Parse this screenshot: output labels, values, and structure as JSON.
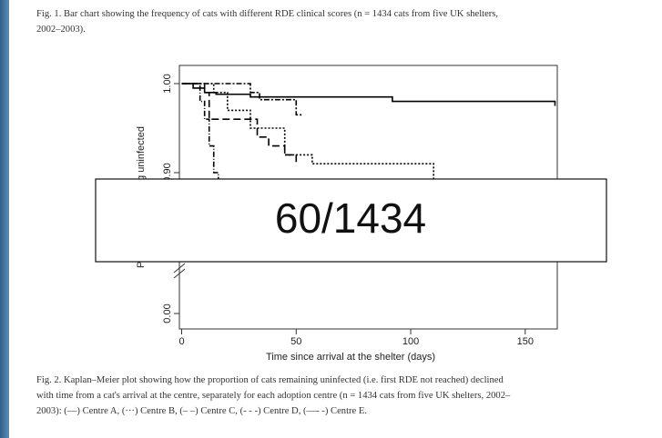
{
  "figure_1_caption": [
    "Fig. 1.  Bar chart showing the frequency of cats with different RDE clinical scores (n = 1434 cats from five UK shelters,",
    "2002–2003)."
  ],
  "figure_2_caption": [
    "Fig. 2.  Kaplan–Meier plot showing how the proportion of cats remaining uninfected (i.e. first RDE not reached) declined",
    "with time from a cat's arrival at the centre, separately for each adoption centre (n = 1434 cats from five UK shelters, 2002–",
    "2003): (—) Centre A, (···) Centre B, (– –) Centre C, (- - -) Centre D, (—- -) Centre E."
  ],
  "overlay": "60/1434",
  "chart_data": {
    "type": "step",
    "xlabel": "Time since arrival at the shelter (days)",
    "ylabel": "Proportion remaining uninfected",
    "xlim": [
      -1,
      164
    ],
    "xticks": [
      0,
      50,
      100,
      150
    ],
    "ylim": [
      0.8,
      1.0
    ],
    "yticks": [
      {
        "value": 1.0,
        "label": "1.00"
      },
      {
        "value": 0.9,
        "label": "0.90"
      },
      {
        "value": 0.0,
        "label": "0.00"
      }
    ],
    "series": [
      {
        "name": "Centre A",
        "color": "#000",
        "dash": "none",
        "x": [
          0,
          5,
          10,
          15,
          30,
          92,
          163
        ],
        "values": [
          1.0,
          0.995,
          0.99,
          0.988,
          0.985,
          0.98,
          0.975
        ]
      },
      {
        "name": "Centre B",
        "color": "#000",
        "dash": "6 2 2 2",
        "x": [
          0,
          30,
          34,
          50,
          52
        ],
        "values": [
          1.0,
          0.99,
          0.982,
          0.965,
          0.962
        ]
      },
      {
        "name": "Centre C",
        "color": "#000",
        "dash": "8 4",
        "x": [
          0,
          10,
          12,
          30,
          33,
          38,
          45,
          50
        ],
        "values": [
          1.0,
          0.99,
          0.96,
          0.96,
          0.94,
          0.93,
          0.92,
          0.91
        ]
      },
      {
        "name": "Centre D",
        "color": "#000",
        "dash": "2 2",
        "x": [
          0,
          14,
          20,
          30,
          45,
          57,
          110
        ],
        "values": [
          1.0,
          0.99,
          0.97,
          0.95,
          0.92,
          0.91,
          0.88
        ]
      },
      {
        "name": "Centre E",
        "color": "#000",
        "dash": "6 2 1 2",
        "x": [
          0,
          8,
          10,
          12,
          14,
          16
        ],
        "values": [
          1.0,
          0.98,
          0.96,
          0.93,
          0.9,
          0.88
        ]
      }
    ]
  }
}
